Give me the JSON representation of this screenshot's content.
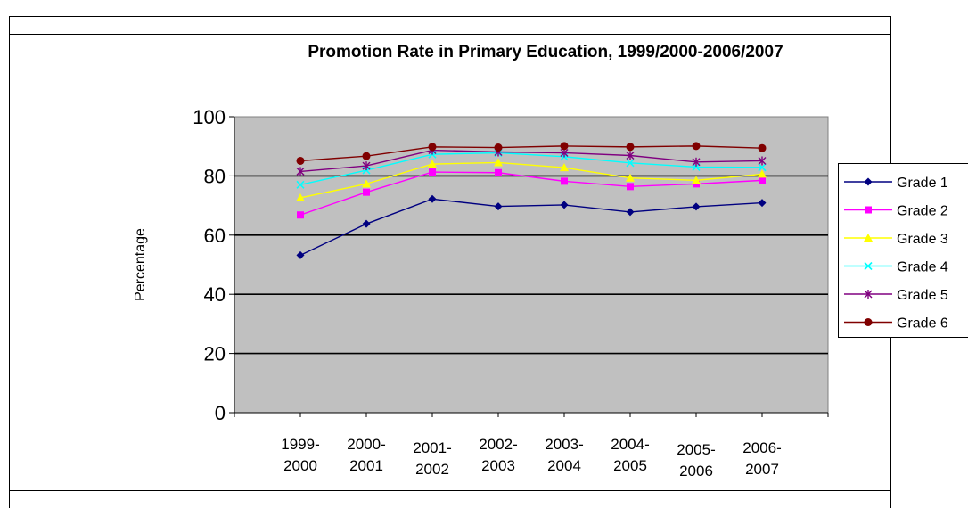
{
  "chart_data": {
    "type": "line",
    "title": "Promotion Rate in Primary Education, 1999/2000-2006/2007",
    "ylabel": "Percentage",
    "xlabel": "",
    "ylim": [
      0,
      100
    ],
    "yticks": [
      "0",
      "20",
      "40",
      "60",
      "80",
      "100"
    ],
    "categories": [
      [
        "1999-",
        "2000"
      ],
      [
        "2000-",
        "2001"
      ],
      [
        "2001-",
        "2002"
      ],
      [
        "2002-",
        "2003"
      ],
      [
        "2003-",
        "2004"
      ],
      [
        "2004-",
        "2005"
      ],
      [
        "2005-",
        "2006"
      ],
      [
        "2006-",
        "2007"
      ]
    ],
    "grid": true,
    "legend_position": "right",
    "colors": {
      "plot_background": "#c0c0c0",
      "gridline": "#000000",
      "frame": "#000000"
    },
    "series": [
      {
        "name": "Grade 1",
        "color": "#000080",
        "marker": "diamond",
        "values": [
          53.2,
          63.8,
          72.2,
          69.7,
          70.2,
          67.8,
          69.6,
          70.9
        ]
      },
      {
        "name": "Grade 2",
        "color": "#ff00ff",
        "marker": "square",
        "values": [
          66.8,
          74.5,
          81.3,
          81.1,
          78.2,
          76.4,
          77.3,
          78.5
        ]
      },
      {
        "name": "Grade 3",
        "color": "#ffff00",
        "marker": "triangle",
        "values": [
          72.6,
          77.3,
          84.0,
          84.5,
          82.8,
          79.3,
          78.5,
          80.6
        ]
      },
      {
        "name": "Grade 4",
        "color": "#00ffff",
        "marker": "x",
        "values": [
          77.0,
          81.9,
          87.3,
          87.8,
          86.5,
          84.4,
          83.0,
          82.9
        ]
      },
      {
        "name": "Grade 5",
        "color": "#800080",
        "marker": "star",
        "values": [
          81.5,
          83.4,
          88.7,
          88.1,
          87.8,
          86.9,
          84.7,
          85.1
        ]
      },
      {
        "name": "Grade 6",
        "color": "#800000",
        "marker": "circle",
        "values": [
          85.1,
          86.7,
          89.8,
          89.6,
          90.1,
          89.8,
          90.1,
          89.4
        ]
      }
    ]
  }
}
